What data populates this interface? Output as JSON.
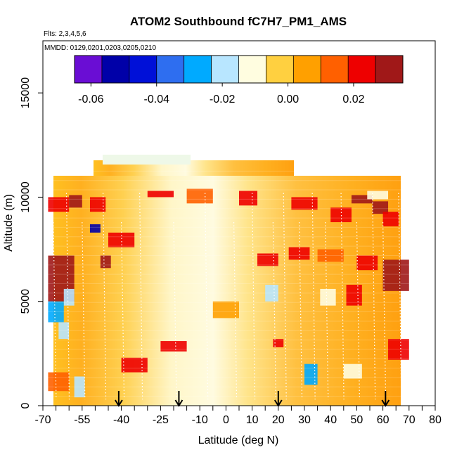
{
  "chart_data": {
    "type": "heatmap",
    "title": "ATOM2 Southbound fC7H7_PM1_AMS",
    "subtitle_flights": "Flts: 2,3,4,5,6",
    "subtitle_dates": "MMDD: 0129,0201,0203,0205,0210",
    "xlabel": "Latitude (deg N)",
    "ylabel": "Altitude (m)",
    "xlim": [
      -70,
      80
    ],
    "ylim": [
      0,
      17500
    ],
    "x_ticks": [
      -70,
      -55,
      -40,
      -25,
      -10,
      0,
      10,
      20,
      30,
      40,
      50,
      60,
      70,
      80
    ],
    "x_tick_labels": [
      "-70",
      "-55",
      "-40",
      "-25",
      "-10",
      "0",
      "10",
      "20",
      "30",
      "40",
      "50",
      "60",
      "70",
      "80"
    ],
    "y_ticks": [
      0,
      5000,
      10000,
      15000
    ],
    "y_tick_labels": [
      "0",
      "5000",
      "10000",
      "15000"
    ],
    "colorbar": {
      "range": [
        -0.065,
        0.035
      ],
      "ticks": [
        -0.06,
        -0.04,
        -0.02,
        0.0,
        0.02
      ],
      "tick_labels": [
        "-0.06",
        "-0.04",
        "-0.02",
        "0.00",
        "0.02"
      ],
      "colors": [
        "#6a0dd4",
        "#0000a8",
        "#0010d8",
        "#2e6ef0",
        "#00aaff",
        "#b8e6ff",
        "#fffde0",
        "#ffd040",
        "#ffa000",
        "#ff6000",
        "#ee0000",
        "#a01818"
      ]
    },
    "arrow_markers_lat": [
      -41,
      -18,
      20,
      61
    ],
    "grid": false,
    "legend": "colorbar-top-inside",
    "heatmap_summary": "Curtain of fC7H7 vs latitude and altitude; mostly 0.00 to 0.02 (yellow-orange), pale near 0.00 around -20 to 10 deg N, peaks near 0.03 (red) at 8-11 km near -60, 35 and 55 deg N, negative patches (blue, about -0.02) near -62 to -57 and 33 deg N at low altitude."
  }
}
